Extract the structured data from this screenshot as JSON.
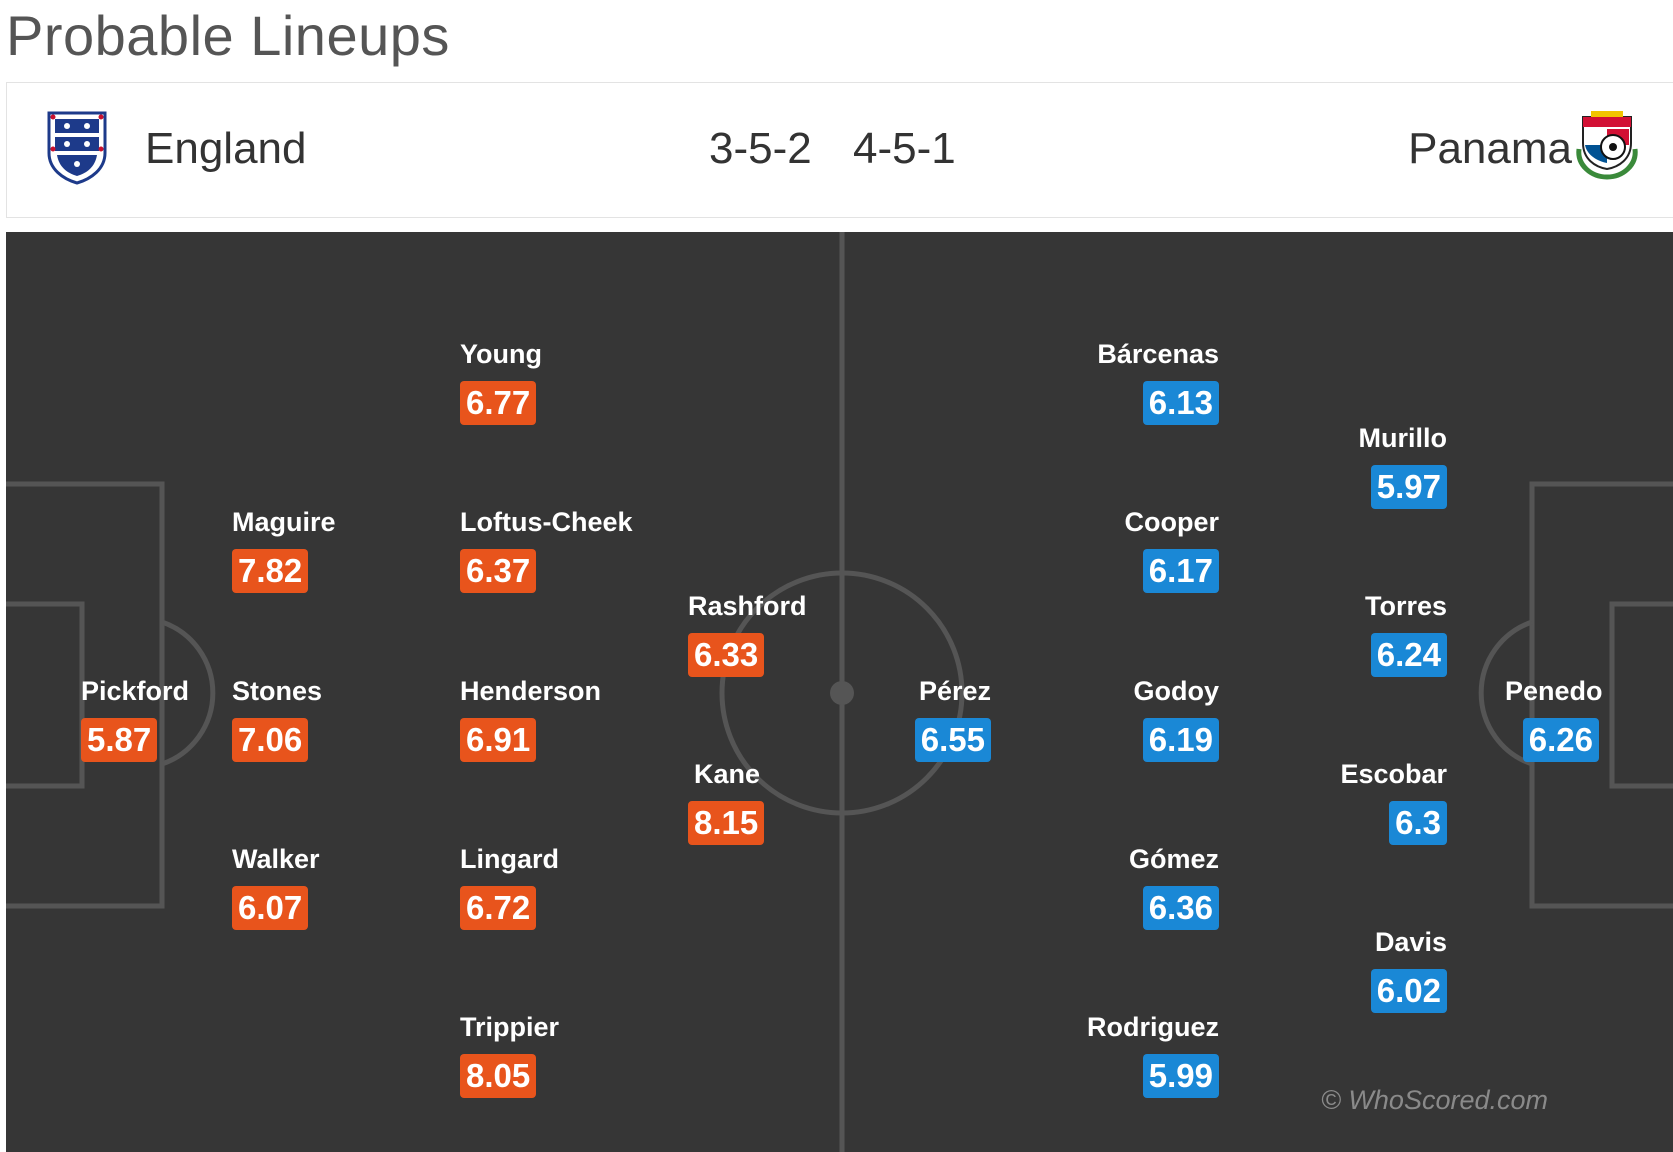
{
  "page": {
    "title": "Probable Lineups"
  },
  "home": {
    "name": "England",
    "formation": "3-5-2",
    "crest_icon": "england-three-lions-crest",
    "rating_color": "#e8541c",
    "players": [
      {
        "name": "Pickford",
        "rating": "5.87"
      },
      {
        "name": "Maguire",
        "rating": "7.82"
      },
      {
        "name": "Stones",
        "rating": "7.06"
      },
      {
        "name": "Walker",
        "rating": "6.07"
      },
      {
        "name": "Young",
        "rating": "6.77"
      },
      {
        "name": "Loftus-Cheek",
        "rating": "6.37"
      },
      {
        "name": "Henderson",
        "rating": "6.91"
      },
      {
        "name": "Lingard",
        "rating": "6.72"
      },
      {
        "name": "Trippier",
        "rating": "8.05"
      },
      {
        "name": "Rashford",
        "rating": "6.33"
      },
      {
        "name": "Kane",
        "rating": "8.15"
      }
    ]
  },
  "away": {
    "name": "Panama",
    "formation": "4-5-1",
    "crest_icon": "panama-fepafut-crest",
    "rating_color": "#1a88d6",
    "players": [
      {
        "name": "Pérez",
        "rating": "6.55"
      },
      {
        "name": "Bárcenas",
        "rating": "6.13"
      },
      {
        "name": "Cooper",
        "rating": "6.17"
      },
      {
        "name": "Godoy",
        "rating": "6.19"
      },
      {
        "name": "Gómez",
        "rating": "6.36"
      },
      {
        "name": "Rodriguez",
        "rating": "5.99"
      },
      {
        "name": "Murillo",
        "rating": "5.97"
      },
      {
        "name": "Torres",
        "rating": "6.24"
      },
      {
        "name": "Escobar",
        "rating": "6.3"
      },
      {
        "name": "Davis",
        "rating": "6.02"
      },
      {
        "name": "Penedo",
        "rating": "6.26"
      }
    ]
  },
  "watermark": "© WhoScored.com",
  "colors": {
    "pitch": "#363636",
    "lines": "#555555"
  }
}
